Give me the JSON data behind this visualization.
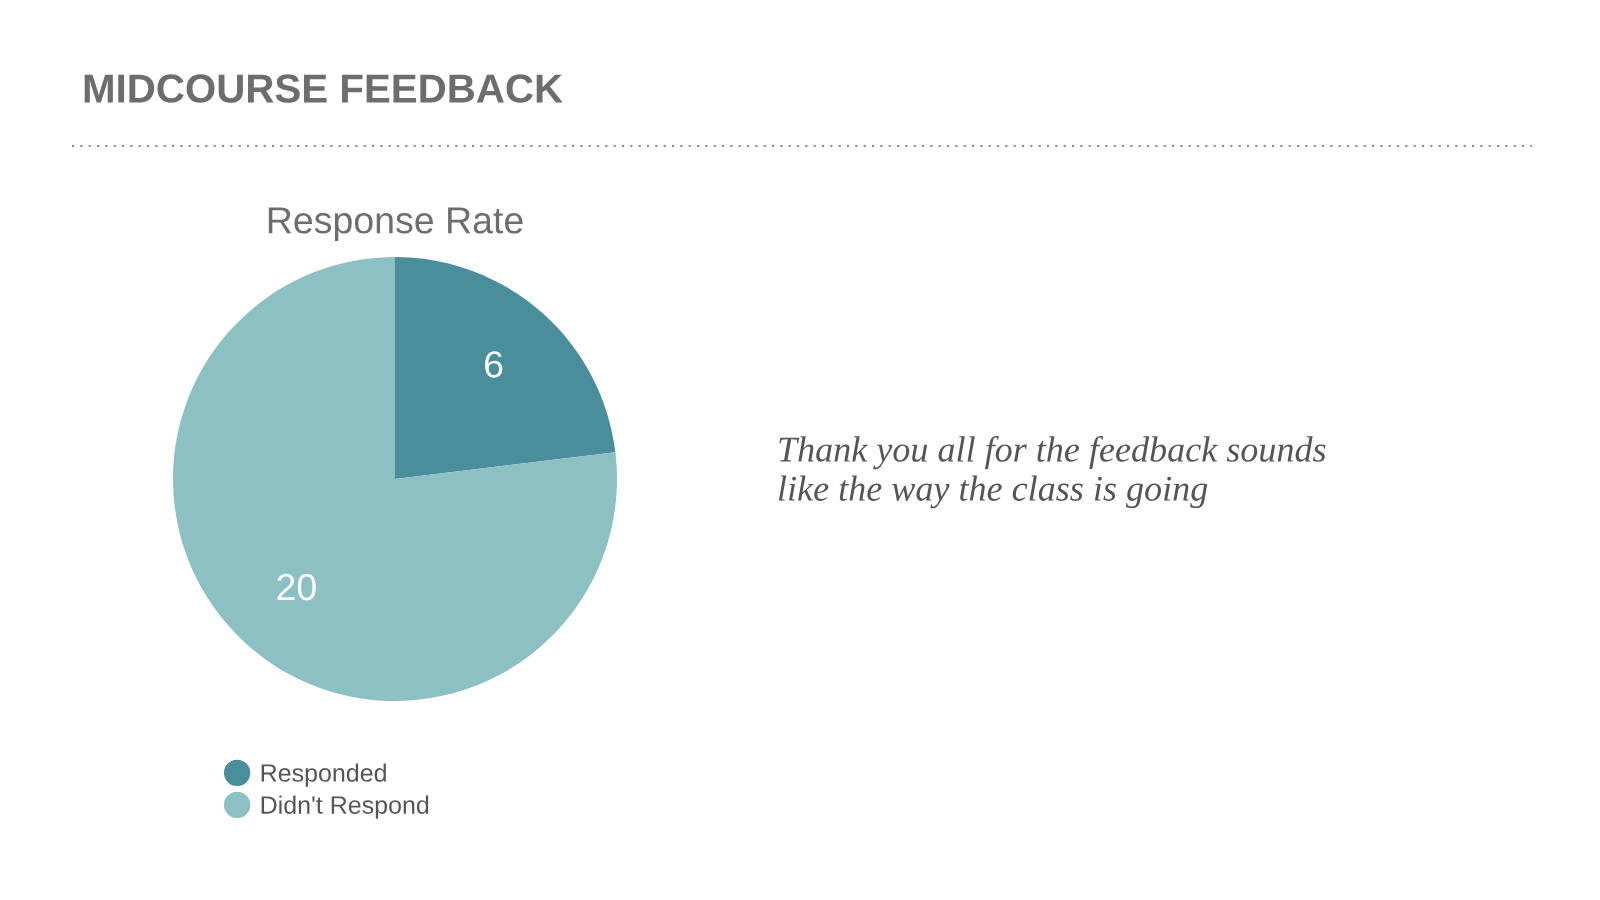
{
  "chart_data": {
    "type": "pie",
    "title": "MIDCOURSE FEEDBACK",
    "subtitle": "Response Rate",
    "categories": [
      "Responded",
      "Didn't Respond"
    ],
    "values": [
      6,
      20
    ],
    "colors": [
      "#4a8e9c",
      "#8cc0c3"
    ],
    "data_labels": true,
    "legend": "bottom",
    "annotations": [
      "Thank you all for the feedback sounds\nlike the way the class is going"
    ]
  }
}
